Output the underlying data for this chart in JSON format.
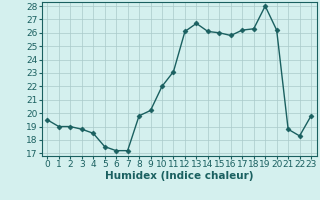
{
  "x": [
    0,
    1,
    2,
    3,
    4,
    5,
    6,
    7,
    8,
    9,
    10,
    11,
    12,
    13,
    14,
    15,
    16,
    17,
    18,
    19,
    20,
    21,
    22,
    23
  ],
  "y": [
    19.5,
    19.0,
    19.0,
    18.8,
    18.5,
    17.5,
    17.2,
    17.2,
    19.8,
    20.2,
    22.0,
    23.1,
    26.1,
    26.7,
    26.1,
    26.0,
    25.8,
    26.2,
    26.3,
    28.0,
    26.2,
    18.8,
    18.3,
    19.8
  ],
  "line_color": "#1a6060",
  "marker_color": "#1a6060",
  "bg_color": "#d4f0ee",
  "grid_color": "#aacaca",
  "xlabel": "Humidex (Indice chaleur)",
  "ylim_min": 16.8,
  "ylim_max": 28.3,
  "xlim_min": -0.5,
  "xlim_max": 23.5,
  "yticks": [
    17,
    18,
    19,
    20,
    21,
    22,
    23,
    24,
    25,
    26,
    27,
    28
  ],
  "xticks": [
    0,
    1,
    2,
    3,
    4,
    5,
    6,
    7,
    8,
    9,
    10,
    11,
    12,
    13,
    14,
    15,
    16,
    17,
    18,
    19,
    20,
    21,
    22,
    23
  ],
  "xlabel_fontsize": 7.5,
  "tick_fontsize": 6.5,
  "line_width": 1.0,
  "marker_size": 2.5
}
